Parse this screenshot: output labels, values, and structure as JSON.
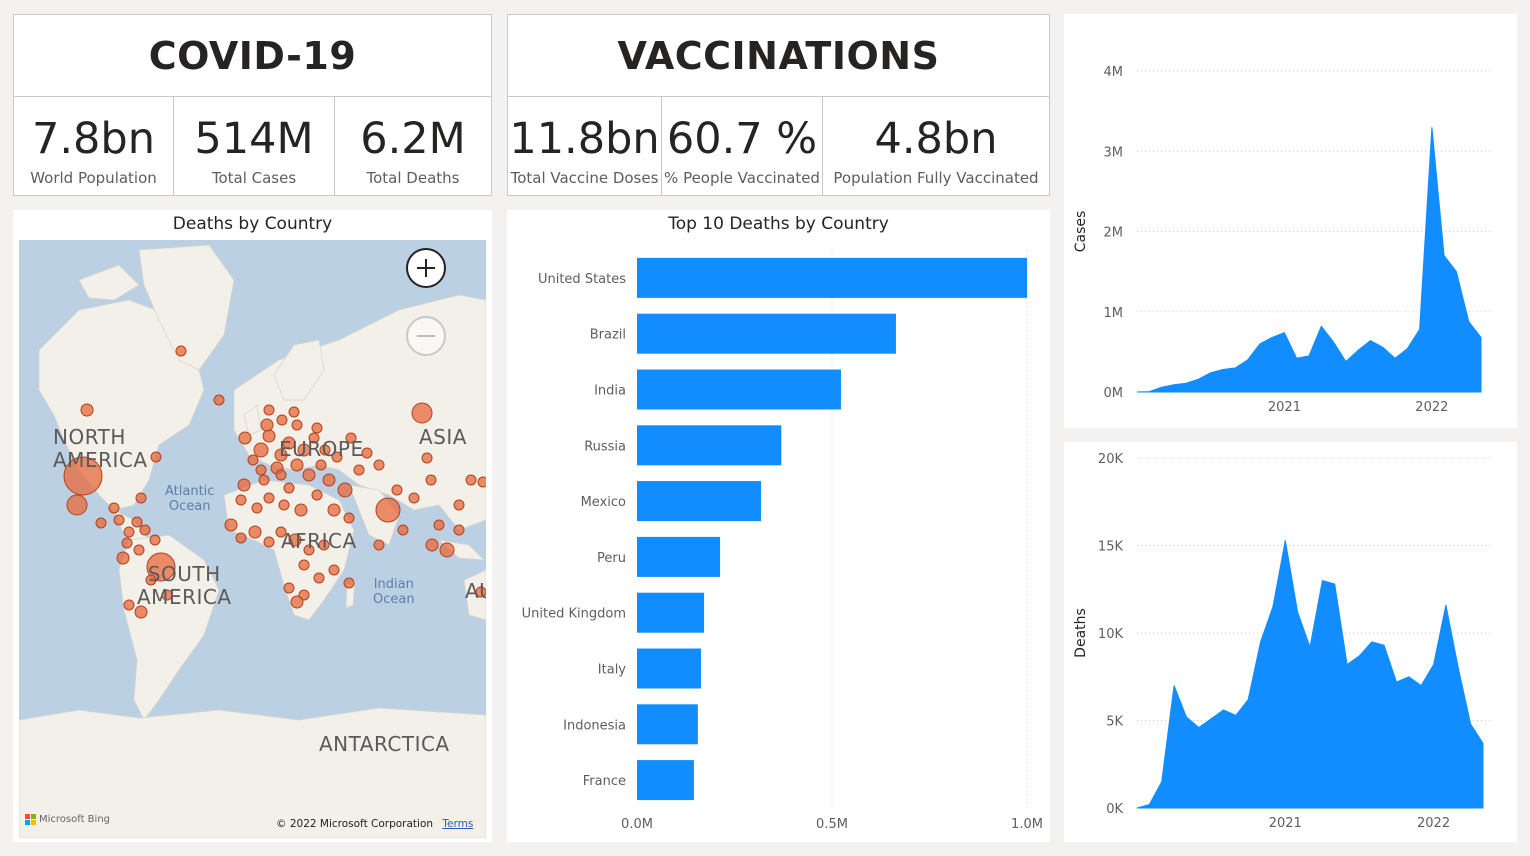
{
  "covid": {
    "title": "COVID-19",
    "kpis": [
      {
        "value": "7.8bn",
        "label": "World Population"
      },
      {
        "value": "514M",
        "label": "Total Cases"
      },
      {
        "value": "6.2M",
        "label": "Total Deaths"
      }
    ]
  },
  "vaccinations": {
    "title": "VACCINATIONS",
    "kpis": [
      {
        "value": "11.8bn",
        "label": "Total Vaccine Doses"
      },
      {
        "value": "60.7 %",
        "label": "% People Vaccinated"
      },
      {
        "value": "4.8bn",
        "label": "Population Fully Vaccinated"
      }
    ]
  },
  "map": {
    "title": "Deaths by Country",
    "labels": {
      "north_america": "NORTH\nAMERICA",
      "south_america": "SOUTH\nAMERICA",
      "asia": "ASIA",
      "europe": "EUROPE",
      "africa": "AFRICA",
      "antarctica": "ANTARCTICA",
      "atlantic": "Atlantic\nOcean",
      "indian": "Indian\nOcean",
      "australia_partial": "AU"
    },
    "attribution": "© 2022 Microsoft Corporation",
    "terms_link": "Terms",
    "bing_logo": "Microsoft Bing",
    "zoom_in_icon": "plus-icon",
    "zoom_out_icon": "minus-icon",
    "bubble_color": "#e8683a"
  },
  "chart_data": [
    {
      "type": "bar",
      "orientation": "horizontal",
      "title": "Top 10 Deaths by Country",
      "categories": [
        "United States",
        "Brazil",
        "India",
        "Russia",
        "Mexico",
        "Peru",
        "United Kingdom",
        "Italy",
        "Indonesia",
        "France"
      ],
      "values": [
        1000000,
        664000,
        523000,
        370000,
        318000,
        213000,
        172000,
        164000,
        156000,
        146000
      ],
      "xlim": [
        0,
        1000000
      ],
      "xticks": [
        "0.0M",
        "0.5M",
        "1.0M"
      ],
      "grid": true,
      "color": "#118dff"
    },
    {
      "type": "area",
      "title": "",
      "ylabel": "Cases",
      "xlabel": "",
      "ylim": [
        0,
        4000000
      ],
      "yticks": [
        "0M",
        "1M",
        "2M",
        "3M",
        "4M"
      ],
      "xticks": [
        "2021",
        "2022"
      ],
      "x_range": [
        "2020-01",
        "2022-05"
      ],
      "color": "#118dff",
      "series": [
        {
          "x": [
            "2020-01",
            "2020-02",
            "2020-03",
            "2020-04",
            "2020-05",
            "2020-06",
            "2020-07",
            "2020-08",
            "2020-09",
            "2020-10",
            "2020-11",
            "2020-12",
            "2021-01",
            "2021-02",
            "2021-03",
            "2021-04",
            "2021-05",
            "2021-06",
            "2021-07",
            "2021-08",
            "2021-09",
            "2021-10",
            "2021-11",
            "2021-12",
            "2022-01",
            "2022-02",
            "2022-03",
            "2022-04",
            "2022-05"
          ],
          "values": [
            0,
            5000,
            60000,
            90000,
            110000,
            160000,
            240000,
            280000,
            300000,
            400000,
            600000,
            680000,
            740000,
            420000,
            450000,
            820000,
            620000,
            380000,
            520000,
            640000,
            560000,
            420000,
            540000,
            780000,
            3300000,
            1700000,
            1500000,
            880000,
            680000
          ]
        }
      ]
    },
    {
      "type": "area",
      "title": "",
      "ylabel": "Deaths",
      "xlabel": "",
      "ylim": [
        0,
        20000
      ],
      "yticks": [
        "0K",
        "5K",
        "10K",
        "15K",
        "20K"
      ],
      "xticks": [
        "2021",
        "2022"
      ],
      "x_range": [
        "2020-01",
        "2022-05"
      ],
      "color": "#118dff",
      "series": [
        {
          "x": [
            "2020-01",
            "2020-02",
            "2020-03",
            "2020-04",
            "2020-05",
            "2020-06",
            "2020-07",
            "2020-08",
            "2020-09",
            "2020-10",
            "2020-11",
            "2020-12",
            "2021-01",
            "2021-02",
            "2021-03",
            "2021-04",
            "2021-05",
            "2021-06",
            "2021-07",
            "2021-08",
            "2021-09",
            "2021-10",
            "2021-11",
            "2021-12",
            "2022-01",
            "2022-02",
            "2022-03",
            "2022-04",
            "2022-05"
          ],
          "values": [
            0,
            200,
            1500,
            7000,
            5200,
            4600,
            5100,
            5600,
            5300,
            6200,
            9500,
            11500,
            15300,
            11200,
            9200,
            13000,
            12800,
            8200,
            8700,
            9500,
            9300,
            7200,
            7500,
            7000,
            8200,
            11600,
            8000,
            4800,
            3700
          ]
        }
      ]
    }
  ]
}
